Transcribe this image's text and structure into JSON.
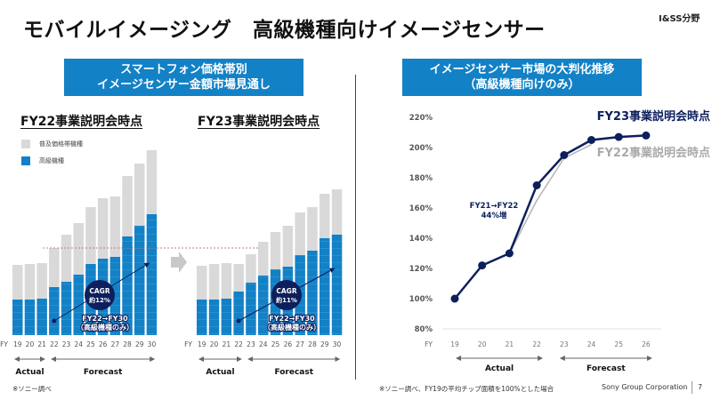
{
  "page": {
    "title": "モバイルイメージング　高級機種向けイメージセンサー",
    "segment": "I&SS分野",
    "footnote_left": "※ソニー調べ",
    "footnote_right": "※ソニー調べ、FY19の平均チップ面積を100%とした場合",
    "company": "Sony Group Corporation",
    "page_number": "7"
  },
  "left_panel": {
    "header_line1": "スマートフォン価格帯別",
    "header_line2": "イメージセンサー金額市場見通し",
    "legend": [
      {
        "label": "普及価格帯機種",
        "color": "#d9d9d9"
      },
      {
        "label": "高級機種",
        "color": "#1381c6"
      }
    ]
  },
  "right_panel": {
    "header_line1": "イメージセンサー市場の大判化推移",
    "header_line2": "（高級機種向けのみ）"
  },
  "chart_data": [
    {
      "type": "bar",
      "stacked": true,
      "title": "FY22事業説明会時点",
      "xlabel": "FY",
      "categories": [
        "19",
        "20",
        "21",
        "22",
        "23",
        "24",
        "25",
        "26",
        "27",
        "28",
        "29",
        "30"
      ],
      "series": [
        {
          "name": "高級機種",
          "color": "#1381c6",
          "values": [
            40,
            40,
            41,
            54,
            60,
            68,
            80,
            86,
            88,
            111,
            123,
            136
          ]
        },
        {
          "name": "普及価格帯機種",
          "color": "#d9d9d9",
          "values": [
            39,
            40,
            40,
            44,
            53,
            58,
            64,
            68,
            68,
            68,
            70,
            72
          ]
        }
      ],
      "units": "relative (unlabeled axis)",
      "periods": [
        {
          "label": "Actual",
          "from": "19",
          "to": "21"
        },
        {
          "label": "Forecast",
          "from": "22",
          "to": "30"
        }
      ],
      "annotation": {
        "badge_line1": "CAGR",
        "badge_line2": "約12%",
        "note_line1": "FY22→FY30",
        "note_line2": "（高級機種のみ）",
        "from": "22",
        "to": "30"
      },
      "reference_line_total": 98
    },
    {
      "type": "bar",
      "stacked": true,
      "title": "FY23事業説明会時点",
      "xlabel": "FY",
      "categories": [
        "19",
        "20",
        "21",
        "22",
        "23",
        "24",
        "25",
        "26",
        "27",
        "28",
        "29",
        "30"
      ],
      "series": [
        {
          "name": "高級機種",
          "color": "#1381c6",
          "values": [
            40,
            40,
            41,
            49,
            59,
            67,
            74,
            77,
            90,
            95,
            109,
            113
          ]
        },
        {
          "name": "普及価格帯機種",
          "color": "#d9d9d9",
          "values": [
            38,
            40,
            40,
            31,
            32,
            38,
            42,
            46,
            48,
            49,
            50,
            51
          ]
        }
      ],
      "units": "relative (unlabeled axis)",
      "periods": [
        {
          "label": "Actual",
          "from": "19",
          "to": "22"
        },
        {
          "label": "Forecast",
          "from": "23",
          "to": "30"
        }
      ],
      "annotation": {
        "badge_line1": "CAGR",
        "badge_line2": "約11%",
        "note_line1": "FY22→FY30",
        "note_line2": "（高級機種のみ）",
        "from": "22",
        "to": "30"
      }
    },
    {
      "type": "line",
      "title": "イメージセンサー市場の大判化推移（高級機種向けのみ）",
      "xlabel": "FY",
      "ylabel": "",
      "x": [
        "19",
        "20",
        "21",
        "22",
        "23",
        "24",
        "25",
        "26"
      ],
      "ylim": [
        80,
        220
      ],
      "yticks": [
        "80%",
        "100%",
        "120%",
        "140%",
        "160%",
        "180%",
        "200%",
        "220%"
      ],
      "ytick_values": [
        80,
        100,
        120,
        140,
        160,
        180,
        200,
        220
      ],
      "series": [
        {
          "name": "FY23事業説明会時点",
          "color": "#0d1f5c",
          "values": [
            100,
            122,
            130,
            175,
            195,
            205,
            207,
            208
          ]
        },
        {
          "name": "FY22事業説明会時点",
          "color": "#b3b3b3",
          "values": [
            100,
            122,
            130,
            165,
            193,
            202,
            null,
            null
          ]
        }
      ],
      "periods": [
        {
          "label": "Actual",
          "from": "19",
          "to": "22"
        },
        {
          "label": "Forecast",
          "from": "23",
          "to": "26"
        }
      ],
      "annotation": {
        "line1": "FY21→FY22",
        "line2": "44%増"
      }
    }
  ]
}
